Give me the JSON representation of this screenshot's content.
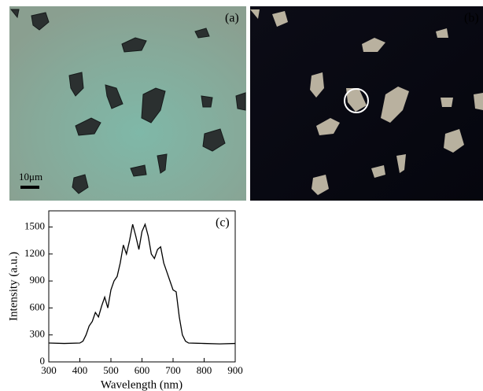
{
  "panels": {
    "a": {
      "label": "(a)",
      "scale_bar": "10μm"
    },
    "b": {
      "label": "(b)"
    }
  },
  "chart_data": {
    "type": "line",
    "annotation": "(c)",
    "x_label": "Wavelength (nm)",
    "y_label": "Intensity (a.u.)",
    "color": "#000000",
    "x": [
      300,
      350,
      400,
      410,
      420,
      430,
      440,
      450,
      460,
      470,
      480,
      490,
      500,
      510,
      520,
      530,
      540,
      550,
      560,
      570,
      580,
      590,
      600,
      610,
      620,
      630,
      640,
      650,
      660,
      670,
      680,
      690,
      700,
      710,
      720,
      730,
      740,
      750,
      800,
      850,
      900
    ],
    "values": [
      210,
      205,
      210,
      230,
      300,
      400,
      450,
      550,
      500,
      620,
      720,
      600,
      800,
      900,
      950,
      1100,
      1300,
      1200,
      1350,
      1530,
      1400,
      1250,
      1450,
      1530,
      1400,
      1200,
      1150,
      1250,
      1280,
      1100,
      1000,
      900,
      800,
      780,
      500,
      300,
      230,
      210,
      205,
      200,
      205
    ],
    "xlim": [
      300,
      900
    ],
    "ylim": [
      0,
      1680
    ],
    "xticks": [
      300,
      400,
      500,
      600,
      700,
      800,
      900
    ],
    "yticks": [
      0,
      300,
      600,
      900,
      1200,
      1500
    ]
  }
}
